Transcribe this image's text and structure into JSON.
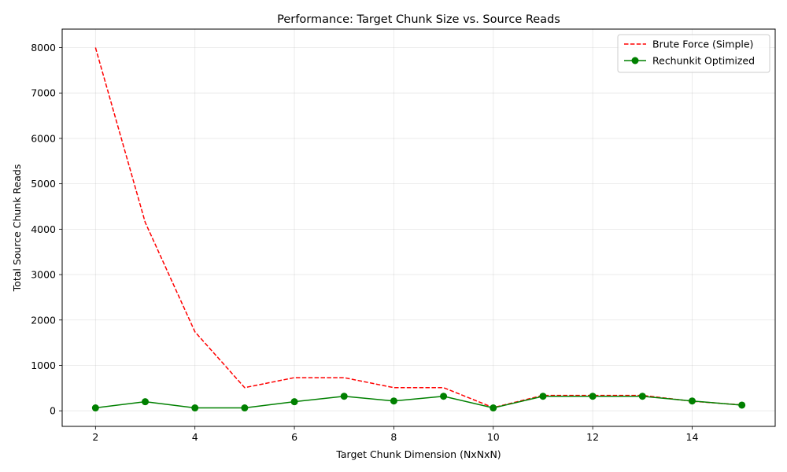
{
  "chart_data": {
    "type": "line",
    "title": "Performance: Target Chunk Size vs. Source Reads",
    "xlabel": "Target Chunk Dimension (NxNxN)",
    "ylabel": "Total Source Chunk Reads",
    "xlim": [
      1.33,
      15.67
    ],
    "ylim": [
      -343,
      8407
    ],
    "xticks": [
      2,
      4,
      6,
      8,
      10,
      12,
      14
    ],
    "yticks": [
      0,
      1000,
      2000,
      3000,
      4000,
      5000,
      6000,
      7000,
      8000
    ],
    "grid": true,
    "legend_position": "top-right",
    "x": [
      2,
      3,
      4,
      5,
      6,
      7,
      8,
      9,
      10,
      11,
      12,
      13,
      14,
      15
    ],
    "series": [
      {
        "name": "Brute Force (Simple)",
        "color": "#ff0000",
        "line_style": "dashed",
        "marker": "none",
        "values": [
          8000,
          4150,
          1740,
          510,
          730,
          730,
          510,
          510,
          70,
          340,
          340,
          340,
          210,
          130
        ]
      },
      {
        "name": "Rechunkit Optimized",
        "color": "#008000",
        "line_style": "solid",
        "marker": "circle",
        "values": [
          64,
          200,
          64,
          64,
          200,
          320,
          216,
          320,
          64,
          320,
          320,
          320,
          216,
          125
        ]
      }
    ]
  }
}
